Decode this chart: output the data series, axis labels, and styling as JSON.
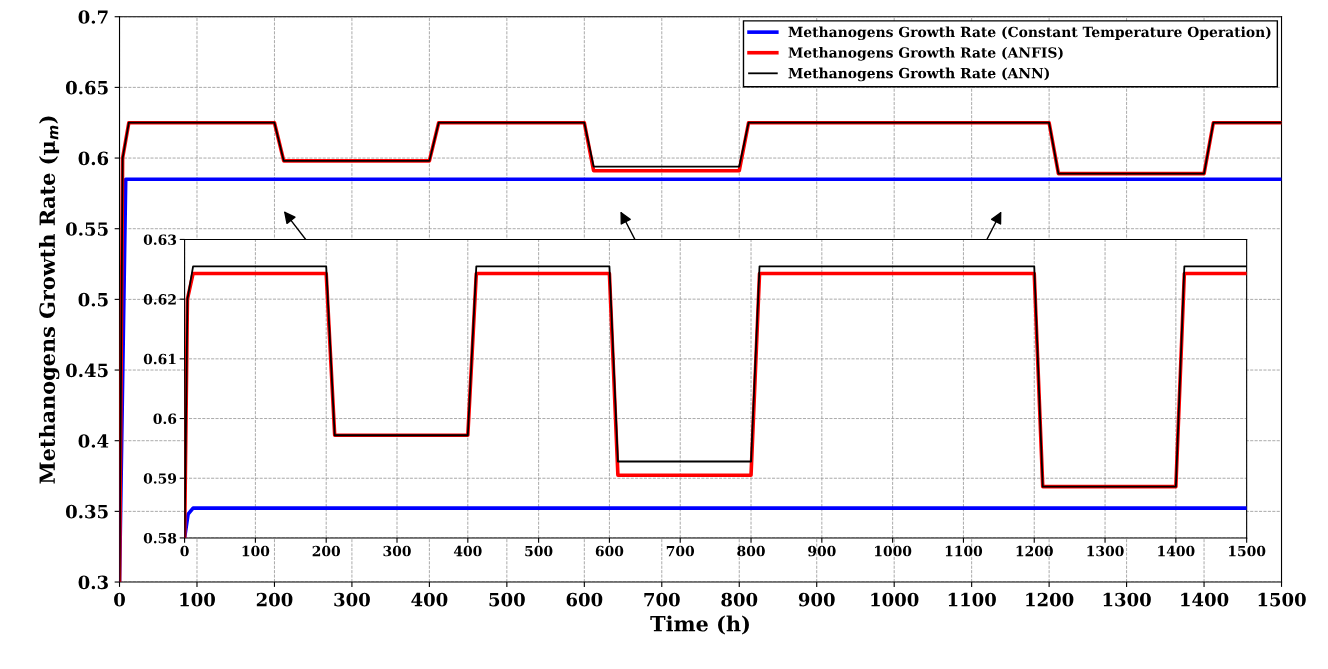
{
  "chart_data": [
    {
      "type": "line",
      "xlabel": "Time (h)",
      "ylabel": "Methanogens Growth Rate (μ$_{m}$)",
      "xlim": [
        0,
        1500
      ],
      "xticks": [
        0,
        100,
        200,
        300,
        400,
        500,
        600,
        700,
        800,
        900,
        1000,
        1100,
        1200,
        1300,
        1400,
        1500
      ],
      "ylim": [
        0.3,
        0.7
      ],
      "yticks": [
        0.3,
        0.35,
        0.4,
        0.45,
        0.5,
        0.55,
        0.6,
        0.65,
        0.7
      ],
      "grid": true,
      "legend": "top right",
      "line_style": "solid",
      "series": [
        {
          "name": "Methanogens Growth Rate (Constant Temperature Operation)",
          "color": "#0000ff",
          "x": [
            0,
            8,
            1500
          ],
          "values": [
            0.3,
            0.585,
            0.585
          ]
        },
        {
          "name": "Methanogens Growth Rate (ANFIS)",
          "color": "#ff0000",
          "x": [
            0,
            4,
            12,
            200,
            212,
            400,
            412,
            600,
            612,
            800,
            812,
            1200,
            1212,
            1400,
            1412,
            1500
          ],
          "values": [
            0.3,
            0.6,
            0.625,
            0.625,
            0.598,
            0.598,
            0.625,
            0.625,
            0.591,
            0.591,
            0.625,
            0.625,
            0.589,
            0.589,
            0.625,
            0.625
          ]
        },
        {
          "name": "Methanogens Growth Rate (ANN)",
          "color": "#000000",
          "x": [
            0,
            4,
            12,
            200,
            212,
            400,
            412,
            600,
            612,
            800,
            812,
            1200,
            1212,
            1400,
            1412,
            1500
          ],
          "values": [
            0.3,
            0.6,
            0.625,
            0.625,
            0.598,
            0.598,
            0.625,
            0.625,
            0.594,
            0.594,
            0.625,
            0.625,
            0.589,
            0.589,
            0.625,
            0.625
          ]
        }
      ]
    },
    {
      "type": "line",
      "xlim": [
        0,
        1500
      ],
      "xticks": [
        0,
        100,
        200,
        300,
        400,
        500,
        600,
        700,
        800,
        900,
        1000,
        1100,
        1200,
        1300,
        1400,
        1500
      ],
      "ylim": [
        0.58,
        0.63
      ],
      "yticks": [
        0.58,
        0.59,
        0.6,
        0.61,
        0.62,
        0.63
      ],
      "grid": true,
      "line_style": "solid",
      "series": [
        {
          "color": "#0000ff",
          "x": [
            0,
            5,
            12,
            1500
          ],
          "values": [
            0.58,
            0.584,
            0.585,
            0.585
          ]
        },
        {
          "color": "#ff0000",
          "x": [
            0,
            4,
            12,
            200,
            212,
            400,
            412,
            600,
            612,
            800,
            812,
            1200,
            1212,
            1400,
            1412,
            1500
          ],
          "values": [
            0.58,
            0.62,
            0.6243,
            0.6243,
            0.5972,
            0.5972,
            0.6243,
            0.6243,
            0.5905,
            0.5905,
            0.6243,
            0.6243,
            0.5886,
            0.5886,
            0.6243,
            0.6243
          ]
        },
        {
          "color": "#000000",
          "x": [
            0,
            4,
            12,
            200,
            212,
            400,
            412,
            600,
            612,
            800,
            812,
            1200,
            1212,
            1400,
            1412,
            1500
          ],
          "values": [
            0.58,
            0.62,
            0.6255,
            0.6255,
            0.5972,
            0.5972,
            0.6255,
            0.6255,
            0.5928,
            0.5928,
            0.6255,
            0.6255,
            0.5886,
            0.5886,
            0.6255,
            0.6255
          ]
        }
      ]
    }
  ]
}
